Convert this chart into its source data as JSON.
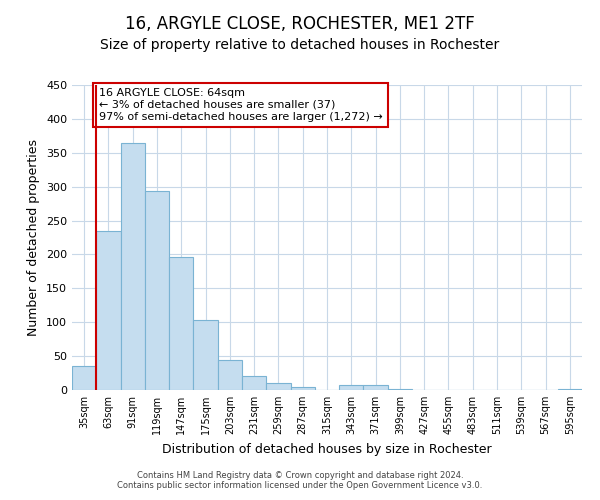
{
  "title": "16, ARGYLE CLOSE, ROCHESTER, ME1 2TF",
  "subtitle": "Size of property relative to detached houses in Rochester",
  "xlabel": "Distribution of detached houses by size in Rochester",
  "ylabel": "Number of detached properties",
  "categories": [
    "35sqm",
    "63sqm",
    "91sqm",
    "119sqm",
    "147sqm",
    "175sqm",
    "203sqm",
    "231sqm",
    "259sqm",
    "287sqm",
    "315sqm",
    "343sqm",
    "371sqm",
    "399sqm",
    "427sqm",
    "455sqm",
    "483sqm",
    "511sqm",
    "539sqm",
    "567sqm",
    "595sqm"
  ],
  "values": [
    35,
    234,
    365,
    293,
    196,
    103,
    45,
    20,
    10,
    5,
    0,
    8,
    8,
    2,
    0,
    0,
    0,
    0,
    0,
    0,
    2
  ],
  "bar_color": "#c5ddef",
  "bar_edge_color": "#7ab3d3",
  "vline_x": 0.5,
  "vline_color": "#cc0000",
  "annotation_text": "16 ARGYLE CLOSE: 64sqm\n← 3% of detached houses are smaller (37)\n97% of semi-detached houses are larger (1,272) →",
  "annotation_box_color": "#ffffff",
  "annotation_box_edge": "#cc0000",
  "ylim": [
    0,
    450
  ],
  "yticks": [
    0,
    50,
    100,
    150,
    200,
    250,
    300,
    350,
    400,
    450
  ],
  "title_fontsize": 12,
  "subtitle_fontsize": 10,
  "xlabel_fontsize": 9,
  "ylabel_fontsize": 9,
  "footer_text": "Contains HM Land Registry data © Crown copyright and database right 2024.\nContains public sector information licensed under the Open Government Licence v3.0.",
  "background_color": "#ffffff",
  "grid_color": "#c8d8e8"
}
